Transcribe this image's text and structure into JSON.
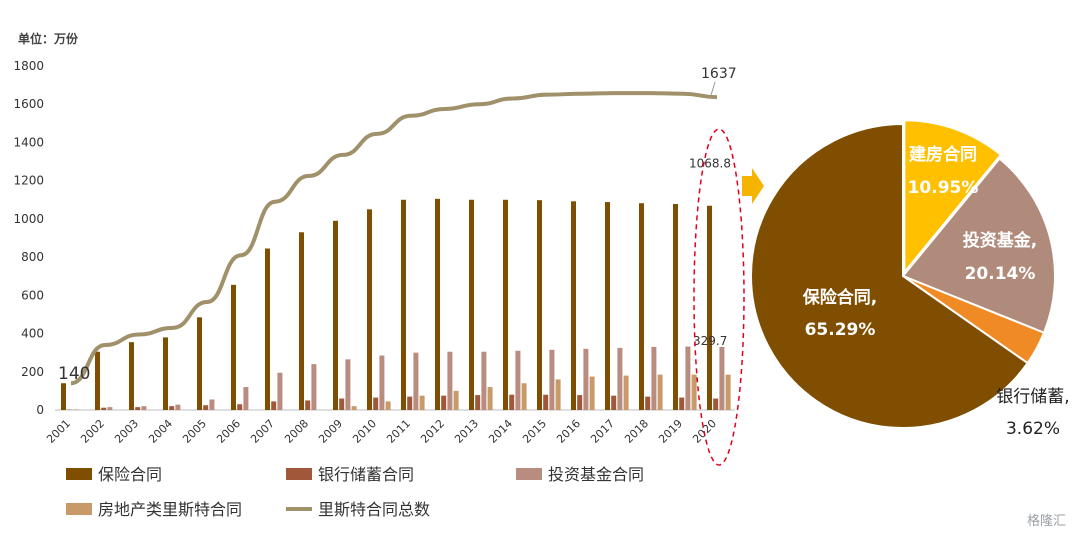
{
  "unit_label": "单位：万份",
  "watermark": "格隆汇",
  "colors": {
    "insurance": "#7f4e00",
    "bank": "#a0573a",
    "fund": "#b98c80",
    "realestate": "#c89a6a",
    "total_line": "#a0916b",
    "pie_insurance": "#7f4e00",
    "pie_house": "#ffc000",
    "pie_fund": "#b08a7a",
    "pie_bank": "#f08a24",
    "highlight": "#e0001b",
    "arrow": "#f5b400"
  },
  "chart_data": [
    {
      "type": "bar",
      "title": "",
      "xlabel": "",
      "ylabel": "单位：万份",
      "ylim": [
        0,
        1800
      ],
      "yticks": [
        0,
        200,
        400,
        600,
        800,
        1000,
        1200,
        1400,
        1600,
        1800
      ],
      "categories": [
        "2001",
        "2002",
        "2003",
        "2004",
        "2005",
        "2006",
        "2007",
        "2008",
        "2009",
        "2010",
        "2011",
        "2012",
        "2013",
        "2014",
        "2015",
        "2016",
        "2017",
        "2018",
        "2019",
        "2020"
      ],
      "series": [
        {
          "name": "保险合同",
          "type": "bar",
          "values": [
            140,
            305,
            355,
            380,
            485,
            655,
            845,
            930,
            990,
            1050,
            1100,
            1105,
            1100,
            1100,
            1098,
            1092,
            1088,
            1082,
            1078,
            1068.8
          ]
        },
        {
          "name": "银行储蓄合同",
          "type": "bar",
          "values": [
            2,
            12,
            15,
            20,
            25,
            30,
            45,
            50,
            60,
            65,
            70,
            75,
            78,
            80,
            80,
            78,
            75,
            70,
            65,
            60
          ]
        },
        {
          "name": "投资基金合同",
          "type": "bar",
          "values": [
            3,
            15,
            20,
            28,
            55,
            120,
            195,
            240,
            265,
            285,
            300,
            305,
            305,
            310,
            315,
            320,
            325,
            330,
            332,
            329.7
          ]
        },
        {
          "name": "房地产类里斯特合同",
          "type": "bar",
          "values": [
            0,
            0,
            0,
            0,
            0,
            0,
            0,
            0,
            20,
            45,
            75,
            100,
            120,
            140,
            160,
            175,
            180,
            185,
            185,
            185
          ]
        },
        {
          "name": "里斯特合同总数",
          "type": "line",
          "values": [
            140,
            340,
            395,
            430,
            565,
            810,
            1090,
            1225,
            1335,
            1445,
            1540,
            1575,
            1600,
            1630,
            1650,
            1655,
            1658,
            1658,
            1655,
            1637
          ]
        }
      ],
      "annotations": [
        {
          "text": "140",
          "series": "里斯特合同总数",
          "category": "2001"
        },
        {
          "text": "1637",
          "series": "里斯特合同总数",
          "category": "2020"
        },
        {
          "text": "1068.8",
          "series": "保险合同",
          "category": "2020"
        },
        {
          "text": "329.7",
          "series": "投资基金合同",
          "category": "2020"
        }
      ],
      "legend": {
        "placement": "bottom",
        "items": [
          "保险合同",
          "银行储蓄合同",
          "投资基金合同",
          "房地产类里斯特合同",
          "里斯特合同总数"
        ]
      }
    },
    {
      "type": "pie",
      "title": "",
      "slices": [
        {
          "label": "建房合同",
          "pct_text": "10.95%",
          "value": 10.95
        },
        {
          "label": "投资基金,",
          "pct_text": "20.14%",
          "value": 20.14
        },
        {
          "label": "银行储蓄,",
          "pct_text": "3.62%",
          "value": 3.62
        },
        {
          "label": "保险合同,",
          "pct_text": "65.29%",
          "value": 65.29
        }
      ]
    }
  ]
}
